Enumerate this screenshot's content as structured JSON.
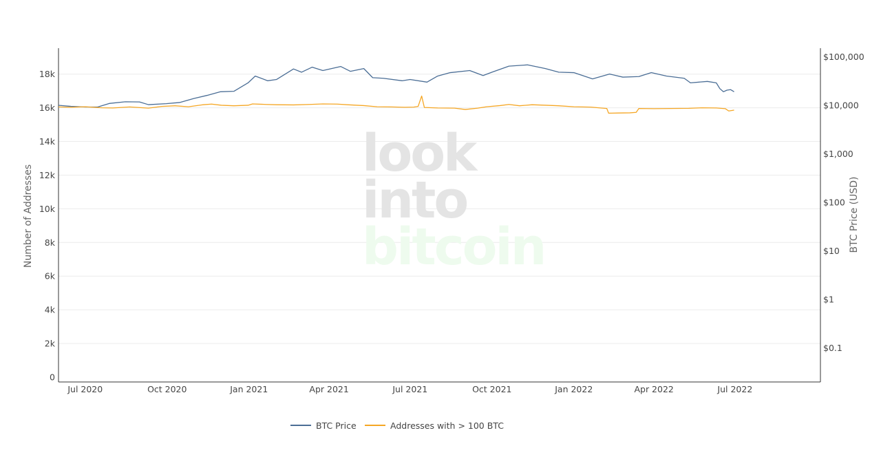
{
  "chart_data": {
    "type": "line",
    "watermark": [
      "look",
      "into",
      "bitcoin"
    ],
    "y_left": {
      "label": "Number of Addresses",
      "range": [
        0,
        19500
      ],
      "ticks": [
        0,
        2000,
        4000,
        6000,
        8000,
        10000,
        12000,
        14000,
        16000,
        18000
      ],
      "tick_labels": [
        "0",
        "2k",
        "4k",
        "6k",
        "8k",
        "10k",
        "12k",
        "14k",
        "16k",
        "18k"
      ],
      "grid": true
    },
    "y_right": {
      "label": "BTC Price (USD)",
      "scale": "log",
      "range": [
        0.02,
        150000
      ],
      "ticks": [
        0.1,
        1,
        10,
        100,
        1000,
        10000,
        100000
      ],
      "tick_labels": [
        "$0.1",
        "$1",
        "$10",
        "$100",
        "$1,000",
        "$10,000",
        "$100,000"
      ]
    },
    "x_axis": {
      "range": [
        "2020-06-01",
        "2022-10-05"
      ],
      "ticks": [
        "2020-07-01",
        "2020-10-01",
        "2021-01-01",
        "2021-04-01",
        "2021-07-01",
        "2021-10-01",
        "2022-01-01",
        "2022-04-01",
        "2022-07-01"
      ],
      "tick_labels": [
        "Jul 2020",
        "Oct 2020",
        "Jan 2021",
        "Apr 2021",
        "Jul 2021",
        "Oct 2021",
        "Jan 2022",
        "Apr 2022",
        "Jul 2022"
      ]
    },
    "legend": {
      "placement": "bottom-center"
    },
    "series": [
      {
        "name": "BTC Price",
        "axis": "right",
        "color": "#4a6d95",
        "points": [
          [
            "2020-06-01",
            10000
          ],
          [
            "2020-06-15",
            9500
          ],
          [
            "2020-07-01",
            9200
          ],
          [
            "2020-07-15",
            9200
          ],
          [
            "2020-07-28",
            10900
          ],
          [
            "2020-08-15",
            11800
          ],
          [
            "2020-08-31",
            11700
          ],
          [
            "2020-09-10",
            10300
          ],
          [
            "2020-09-30",
            10800
          ],
          [
            "2020-10-15",
            11400
          ],
          [
            "2020-10-31",
            13800
          ],
          [
            "2020-11-15",
            16000
          ],
          [
            "2020-11-30",
            19000
          ],
          [
            "2020-12-15",
            19400
          ],
          [
            "2020-12-31",
            29000
          ],
          [
            "2021-01-08",
            40000
          ],
          [
            "2021-01-22",
            32000
          ],
          [
            "2021-02-01",
            34000
          ],
          [
            "2021-02-20",
            56000
          ],
          [
            "2021-03-01",
            48000
          ],
          [
            "2021-03-13",
            61000
          ],
          [
            "2021-03-25",
            52000
          ],
          [
            "2021-04-14",
            63000
          ],
          [
            "2021-04-25",
            50000
          ],
          [
            "2021-05-10",
            57000
          ],
          [
            "2021-05-20",
            37000
          ],
          [
            "2021-06-01",
            36000
          ],
          [
            "2021-06-22",
            32000
          ],
          [
            "2021-07-01",
            34000
          ],
          [
            "2021-07-20",
            30000
          ],
          [
            "2021-08-01",
            40000
          ],
          [
            "2021-08-15",
            47000
          ],
          [
            "2021-09-06",
            52000
          ],
          [
            "2021-09-21",
            41000
          ],
          [
            "2021-10-01",
            48000
          ],
          [
            "2021-10-20",
            64000
          ],
          [
            "2021-11-10",
            68000
          ],
          [
            "2021-11-30",
            57000
          ],
          [
            "2021-12-15",
            48000
          ],
          [
            "2022-01-01",
            47000
          ],
          [
            "2022-01-22",
            35000
          ],
          [
            "2022-02-10",
            44000
          ],
          [
            "2022-02-25",
            38000
          ],
          [
            "2022-03-15",
            39000
          ],
          [
            "2022-03-29",
            47000
          ],
          [
            "2022-04-15",
            40000
          ],
          [
            "2022-05-05",
            36000
          ],
          [
            "2022-05-12",
            29000
          ],
          [
            "2022-05-31",
            31000
          ],
          [
            "2022-06-10",
            29000
          ],
          [
            "2022-06-14",
            22000
          ],
          [
            "2022-06-18",
            19000
          ],
          [
            "2022-06-22",
            20500
          ],
          [
            "2022-06-26",
            21000
          ],
          [
            "2022-06-30",
            19000
          ]
        ]
      },
      {
        "name": "Addresses with > 100 BTC",
        "axis": "left",
        "color": "#f5a623",
        "points": [
          [
            "2020-06-01",
            16050
          ],
          [
            "2020-06-15",
            16030
          ],
          [
            "2020-07-01",
            16060
          ],
          [
            "2020-07-20",
            16000
          ],
          [
            "2020-08-01",
            15990
          ],
          [
            "2020-08-20",
            16050
          ],
          [
            "2020-09-10",
            15980
          ],
          [
            "2020-09-25",
            16080
          ],
          [
            "2020-10-10",
            16120
          ],
          [
            "2020-10-25",
            16060
          ],
          [
            "2020-11-10",
            16180
          ],
          [
            "2020-11-20",
            16220
          ],
          [
            "2020-12-01",
            16150
          ],
          [
            "2020-12-15",
            16120
          ],
          [
            "2020-12-31",
            16150
          ],
          [
            "2021-01-05",
            16230
          ],
          [
            "2021-01-20",
            16200
          ],
          [
            "2021-02-01",
            16180
          ],
          [
            "2021-02-20",
            16170
          ],
          [
            "2021-03-10",
            16200
          ],
          [
            "2021-03-25",
            16230
          ],
          [
            "2021-04-10",
            16220
          ],
          [
            "2021-04-25",
            16170
          ],
          [
            "2021-05-10",
            16130
          ],
          [
            "2021-05-25",
            16060
          ],
          [
            "2021-06-10",
            16050
          ],
          [
            "2021-06-25",
            16030
          ],
          [
            "2021-07-05",
            16040
          ],
          [
            "2021-07-10",
            16080
          ],
          [
            "2021-07-14",
            16700
          ],
          [
            "2021-07-17",
            16020
          ],
          [
            "2021-08-01",
            15990
          ],
          [
            "2021-08-20",
            15980
          ],
          [
            "2021-09-01",
            15900
          ],
          [
            "2021-09-15",
            15980
          ],
          [
            "2021-09-25",
            16060
          ],
          [
            "2021-10-10",
            16130
          ],
          [
            "2021-10-20",
            16200
          ],
          [
            "2021-11-01",
            16120
          ],
          [
            "2021-11-15",
            16180
          ],
          [
            "2021-12-01",
            16150
          ],
          [
            "2021-12-15",
            16120
          ],
          [
            "2022-01-01",
            16060
          ],
          [
            "2022-01-20",
            16040
          ],
          [
            "2022-01-31",
            15990
          ],
          [
            "2022-02-07",
            15960
          ],
          [
            "2022-02-09",
            15680
          ],
          [
            "2022-02-20",
            15690
          ],
          [
            "2022-03-05",
            15700
          ],
          [
            "2022-03-12",
            15730
          ],
          [
            "2022-03-15",
            15960
          ],
          [
            "2022-04-01",
            15950
          ],
          [
            "2022-04-20",
            15960
          ],
          [
            "2022-05-10",
            15970
          ],
          [
            "2022-05-25",
            16000
          ],
          [
            "2022-06-10",
            15990
          ],
          [
            "2022-06-20",
            15950
          ],
          [
            "2022-06-24",
            15810
          ],
          [
            "2022-06-30",
            15860
          ]
        ]
      }
    ]
  }
}
